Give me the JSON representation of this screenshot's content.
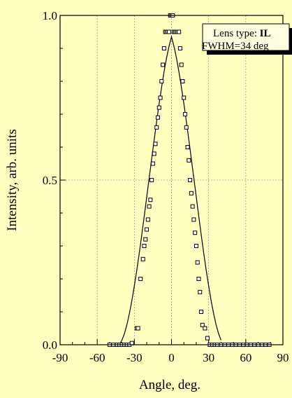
{
  "chart_data": {
    "type": "scatter",
    "xlabel": "Angle, deg.",
    "ylabel": "Intensity, arb. units",
    "xlim": [
      -90,
      90
    ],
    "ylim": [
      0,
      1
    ],
    "xticks": [
      "-90",
      "-60",
      "-30",
      "0",
      "30",
      "60",
      "90"
    ],
    "yticks": [
      "0.0",
      "0.5",
      "1.0"
    ],
    "grid": true,
    "annotation": {
      "line1_prefix": "Lens type: ",
      "line1_bold": "IL",
      "line2": "FWHM=34 deg"
    },
    "series": [
      {
        "kind": "markers",
        "marker": "square-open",
        "x": [
          -50,
          -47,
          -44,
          -42,
          -40,
          -38,
          -36,
          -34,
          -32,
          -28,
          -27,
          -25,
          -23,
          -22,
          -21,
          -20,
          -19,
          -18,
          -17,
          -16,
          -15,
          -14,
          -13,
          -12,
          -11,
          -10,
          -9,
          -8,
          -7,
          -6,
          -5,
          -4,
          -3,
          -2,
          -1,
          0,
          1,
          2,
          3,
          4,
          5,
          6,
          7,
          8,
          9,
          10,
          11,
          12,
          13,
          14,
          15,
          16,
          17,
          18,
          19,
          20,
          21,
          22,
          23,
          24,
          25,
          27,
          29,
          31,
          33,
          35,
          37,
          40,
          43,
          46,
          49,
          52,
          55,
          58,
          61,
          64,
          67,
          70,
          73,
          76,
          79
        ],
        "y": [
          0.0,
          0.0,
          0.0,
          0.0,
          0.0,
          0.0,
          0.0,
          0.0,
          0.005,
          0.05,
          0.05,
          0.2,
          0.26,
          0.3,
          0.32,
          0.35,
          0.38,
          0.42,
          0.44,
          0.5,
          0.55,
          0.58,
          0.61,
          0.66,
          0.69,
          0.72,
          0.75,
          0.8,
          0.85,
          0.9,
          0.95,
          0.95,
          0.95,
          0.95,
          1.0,
          1.0,
          1.0,
          0.95,
          0.95,
          0.95,
          0.95,
          0.95,
          0.9,
          0.85,
          0.8,
          0.75,
          0.7,
          0.66,
          0.6,
          0.56,
          0.5,
          0.46,
          0.42,
          0.38,
          0.34,
          0.3,
          0.25,
          0.2,
          0.16,
          0.1,
          0.06,
          0.05,
          0.02,
          0.0,
          0.0,
          0.0,
          0.0,
          0.0,
          0.0,
          0.0,
          0.0,
          0.0,
          0.0,
          0.0,
          0.0,
          0.0,
          0.0,
          0.0,
          0.0,
          0.0,
          0.0
        ]
      },
      {
        "kind": "line",
        "x": [
          -42,
          -40,
          -38,
          -36,
          -34,
          -32,
          -30,
          -28,
          -26,
          -24,
          -22,
          -20,
          -18,
          -16,
          -14,
          -12,
          -10,
          -8,
          -6,
          -4,
          -2,
          0,
          2,
          4,
          6,
          8,
          10,
          12,
          14,
          16,
          18,
          20,
          22,
          24,
          26,
          28,
          30,
          32,
          34,
          36,
          38,
          40
        ],
        "y": [
          0.0,
          0.014,
          0.034,
          0.061,
          0.095,
          0.134,
          0.179,
          0.227,
          0.279,
          0.334,
          0.391,
          0.449,
          0.507,
          0.565,
          0.622,
          0.678,
          0.732,
          0.782,
          0.829,
          0.871,
          0.906,
          0.935,
          0.906,
          0.871,
          0.829,
          0.782,
          0.732,
          0.678,
          0.622,
          0.565,
          0.507,
          0.449,
          0.391,
          0.334,
          0.279,
          0.227,
          0.179,
          0.134,
          0.095,
          0.061,
          0.034,
          0.014
        ]
      }
    ]
  }
}
